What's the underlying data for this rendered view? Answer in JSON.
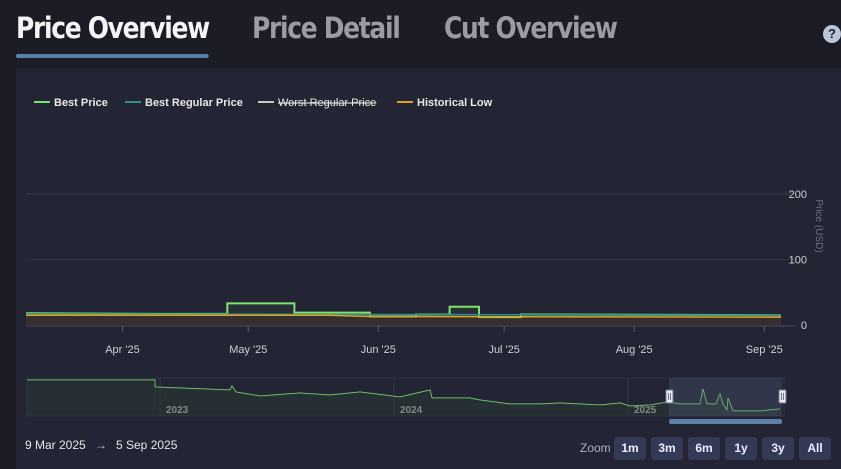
{
  "tabs": [
    {
      "label": "Price Overview"
    },
    {
      "label": "Price Detail"
    },
    {
      "label": "Cut Overview"
    }
  ],
  "help_label": "?",
  "legend": [
    {
      "label": "Best Price",
      "color": "#7ee36e",
      "struck": false
    },
    {
      "label": "Best Regular Price",
      "color": "#2f8f8d",
      "struck": false
    },
    {
      "label": "Worst Regular Price",
      "color": "#c8c8c8",
      "struck": true
    },
    {
      "label": "Historical Low",
      "color": "#e0a022",
      "struck": false
    }
  ],
  "chart_data": {
    "type": "line",
    "xlabel": "",
    "ylabel": "Price (USD)",
    "ylim": [
      0,
      200
    ],
    "y_ticks": [
      "0",
      "100",
      "200"
    ],
    "x_ticks": [
      "Apr '25",
      "May '25",
      "Jun '25",
      "Jul '25",
      "Aug '25",
      "Sep '25"
    ],
    "x_range": [
      "2025-03-09",
      "2025-09-05"
    ],
    "series": [
      {
        "name": "Best Price",
        "color": "#7ee36e",
        "points": [
          [
            "2025-03-09",
            18
          ],
          [
            "2025-04-10",
            17
          ],
          [
            "2025-04-26",
            17
          ],
          [
            "2025-04-26",
            33
          ],
          [
            "2025-05-12",
            33
          ],
          [
            "2025-05-12",
            19
          ],
          [
            "2025-05-30",
            19
          ],
          [
            "2025-05-30",
            13
          ],
          [
            "2025-06-10",
            13
          ],
          [
            "2025-06-10",
            16
          ],
          [
            "2025-06-18",
            16
          ],
          [
            "2025-06-18",
            28
          ],
          [
            "2025-06-25",
            28
          ],
          [
            "2025-06-25",
            12
          ],
          [
            "2025-07-05",
            12
          ],
          [
            "2025-07-05",
            16
          ],
          [
            "2025-09-05",
            15
          ]
        ]
      },
      {
        "name": "Best Regular Price",
        "color": "#2f8f8d",
        "points": [
          [
            "2025-03-09",
            17
          ],
          [
            "2025-09-05",
            15
          ]
        ]
      },
      {
        "name": "Historical Low",
        "color": "#e0a022",
        "points": [
          [
            "2025-03-09",
            15
          ],
          [
            "2025-05-20",
            15
          ],
          [
            "2025-05-30",
            13
          ],
          [
            "2025-09-05",
            12
          ]
        ]
      }
    ],
    "navigator": {
      "x_ticks": [
        "2023",
        "2024",
        "2025"
      ],
      "series_name": "Best Price"
    }
  },
  "date_range": {
    "from": "9 Mar 2025",
    "arrow": "→",
    "to": "5 Sep 2025"
  },
  "zoom": {
    "label": "Zoom",
    "buttons": [
      "1m",
      "3m",
      "6m",
      "1y",
      "3y",
      "All"
    ]
  }
}
